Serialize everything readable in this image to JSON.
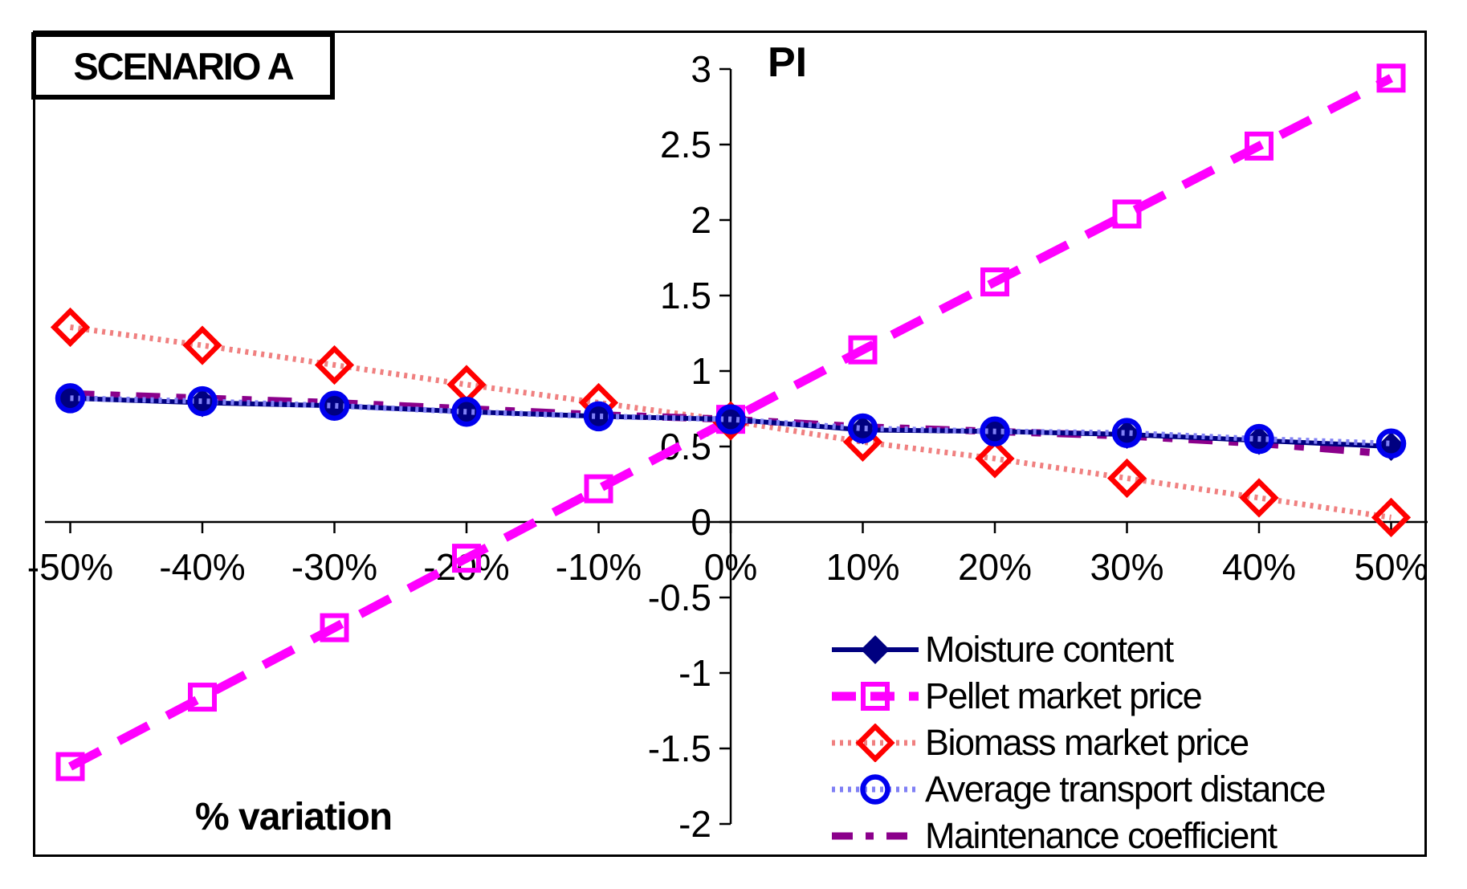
{
  "scenario_label": "SCENARIO A",
  "chart_data": {
    "type": "line",
    "title": "SCENARIO A",
    "xlabel": "% variation",
    "ylabel": "PI",
    "x": [
      -50,
      -40,
      -30,
      -20,
      -10,
      0,
      10,
      20,
      30,
      40,
      50
    ],
    "xticklabels": [
      "-50%",
      "-40%",
      "-30%",
      "-20%",
      "-10%",
      "0%",
      "10%",
      "20%",
      "30%",
      "40%",
      "50%"
    ],
    "yticks": [
      3,
      2.5,
      2,
      1.5,
      1,
      0.5,
      0,
      -0.5,
      -1,
      -1.5,
      -2
    ],
    "ytick_labels": [
      "3",
      "2.5",
      "2",
      "1.5",
      "1",
      "0.5",
      "0",
      "-0.5",
      "-1",
      "-1.5",
      "-2"
    ],
    "xlim": [
      -50,
      50
    ],
    "ylim": [
      -2,
      3
    ],
    "grid": false,
    "axes_cross_at": {
      "x": 0,
      "y": 0
    },
    "legend_position": "inside-bottom-right",
    "series": [
      {
        "name": "Moisture content",
        "line_style": "solid",
        "line_color": "#000080",
        "marker": "diamond-filled",
        "marker_color": "#000080",
        "values": [
          0.82,
          0.79,
          0.77,
          0.73,
          0.7,
          0.68,
          0.61,
          0.6,
          0.58,
          0.54,
          0.5
        ]
      },
      {
        "name": "Pellet market price",
        "line_style": "dashed",
        "line_color": "#ff00ff",
        "marker": "square-open",
        "marker_color": "#ff00ff",
        "values": [
          -1.62,
          -1.16,
          -0.7,
          -0.24,
          0.22,
          0.68,
          1.14,
          1.59,
          2.04,
          2.49,
          2.94
        ]
      },
      {
        "name": "Biomass market price",
        "line_style": "dotted",
        "line_color": "#f08080",
        "marker": "diamond-open",
        "marker_color": "#ff0000",
        "values": [
          1.29,
          1.17,
          1.04,
          0.91,
          0.79,
          0.67,
          0.53,
          0.42,
          0.29,
          0.16,
          0.03
        ]
      },
      {
        "name": "Average transport distance",
        "line_style": "dotted",
        "line_color": "#8080f5",
        "marker": "circle-open",
        "marker_color": "#0000ee",
        "values": [
          0.82,
          0.8,
          0.77,
          0.73,
          0.7,
          0.68,
          0.62,
          0.6,
          0.59,
          0.55,
          0.52
        ]
      },
      {
        "name": "Maintenance coefficient",
        "line_style": "dash-dot",
        "line_color": "#8b008b",
        "marker": "none",
        "marker_color": "#8b008b",
        "values": [
          0.85,
          0.82,
          0.79,
          0.75,
          0.71,
          0.68,
          0.63,
          0.6,
          0.57,
          0.52,
          0.45
        ]
      }
    ]
  }
}
